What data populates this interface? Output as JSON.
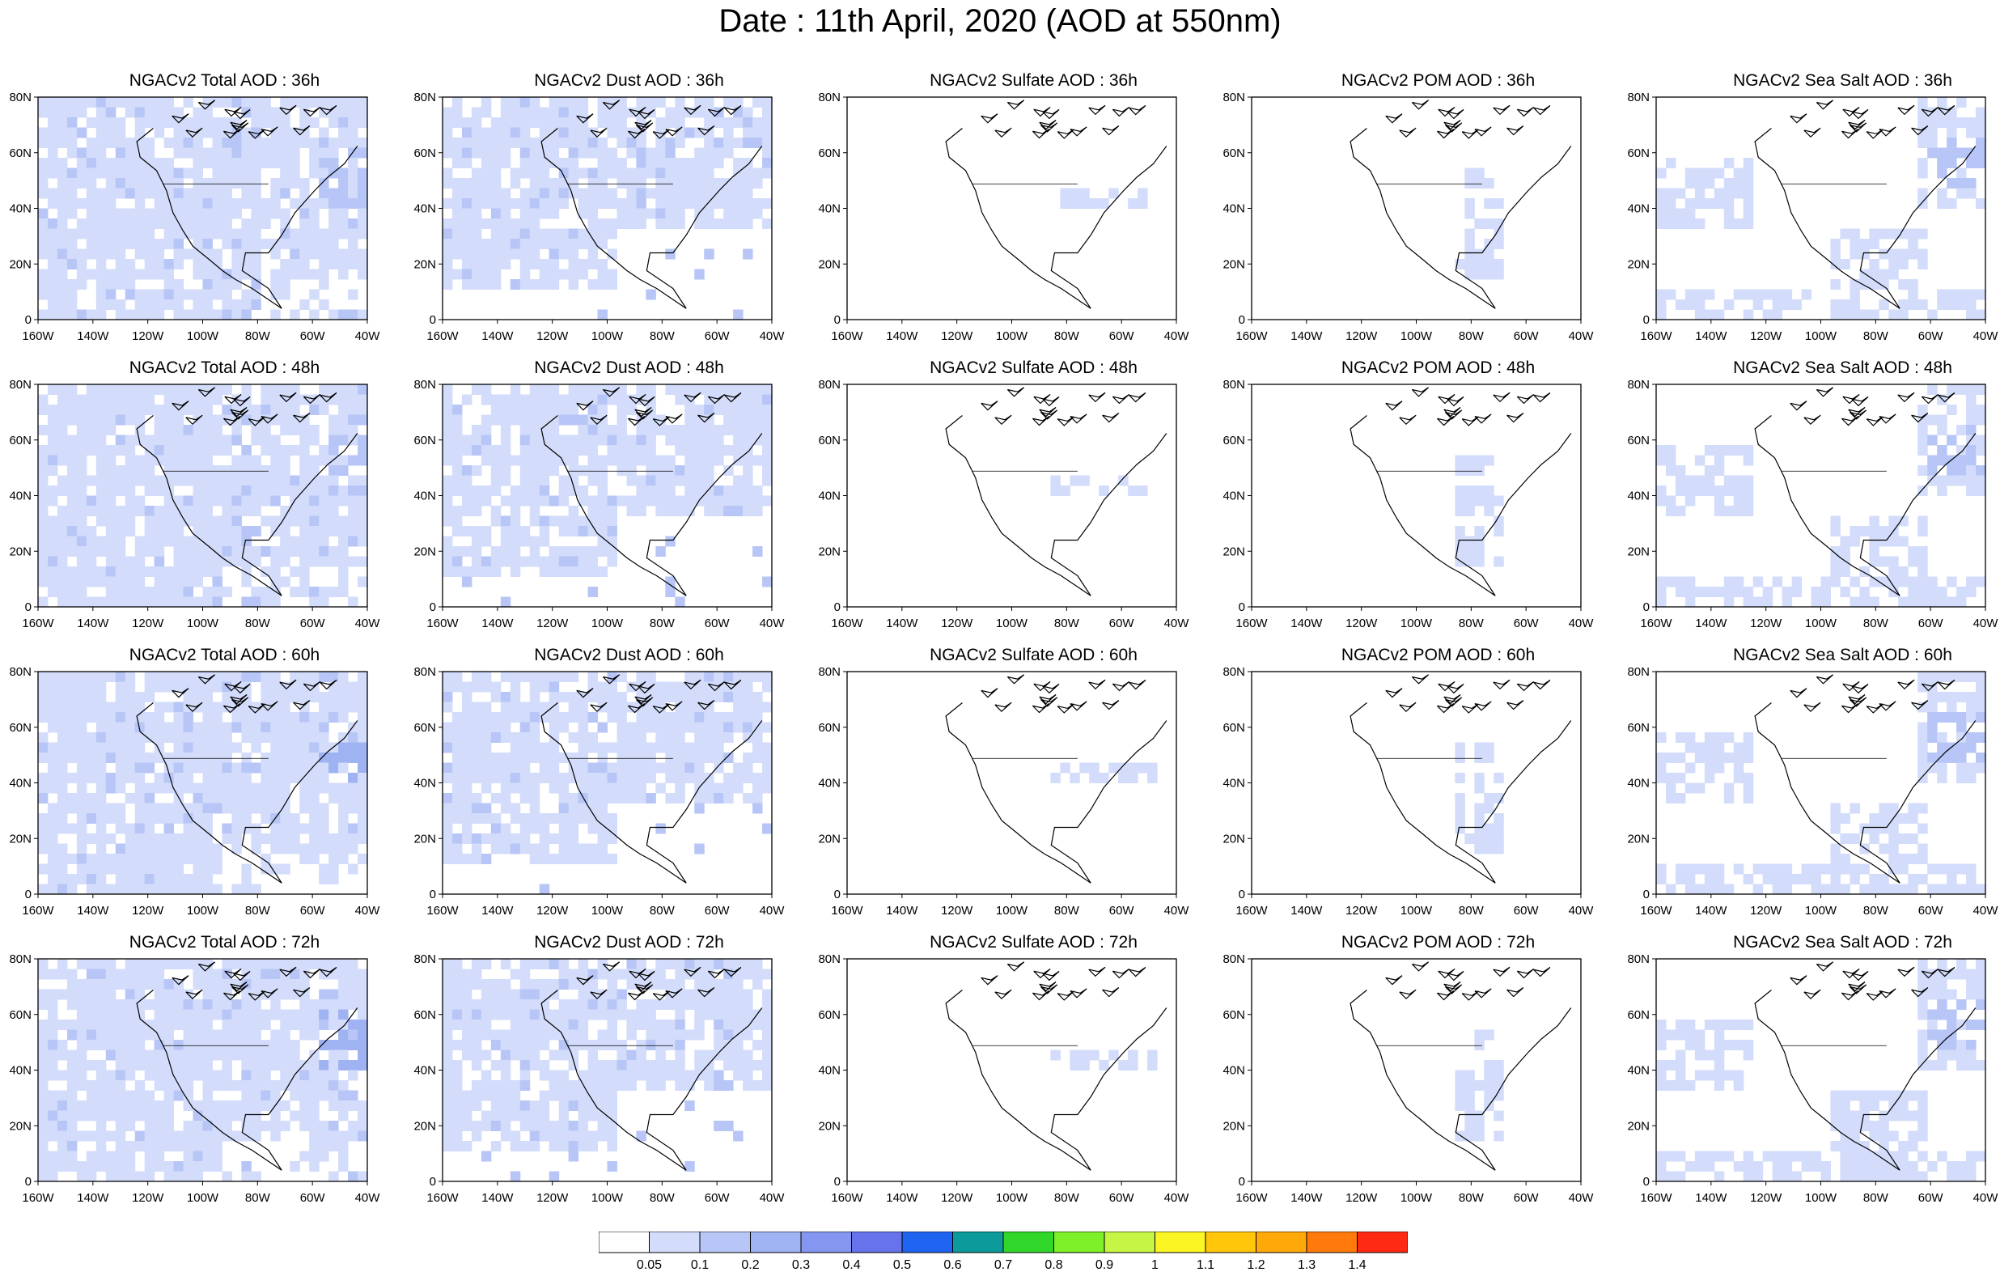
{
  "title": "Date : 11th April, 2020 (AOD at 550nm)",
  "panels": [
    [
      "NGACv2 Total AOD : 36h",
      "NGACv2 Dust AOD : 36h",
      "NGACv2 Sulfate AOD : 36h",
      "NGACv2 POM AOD : 36h",
      "NGACv2 Sea Salt AOD : 36h"
    ],
    [
      "NGACv2 Total AOD : 48h",
      "NGACv2 Dust AOD : 48h",
      "NGACv2 Sulfate AOD : 48h",
      "NGACv2 POM AOD : 48h",
      "NGACv2 Sea Salt AOD : 48h"
    ],
    [
      "NGACv2 Total AOD : 60h",
      "NGACv2 Dust AOD : 60h",
      "NGACv2 Sulfate AOD : 60h",
      "NGACv2 POM AOD : 60h",
      "NGACv2 Sea Salt AOD : 60h"
    ],
    [
      "NGACv2 Total AOD : 72h",
      "NGACv2 Dust AOD : 72h",
      "NGACv2 Sulfate AOD : 72h",
      "NGACv2 POM AOD : 72h",
      "NGACv2 Sea Salt  AOD : 72h"
    ]
  ],
  "lat_ticks": [
    "0",
    "20N",
    "40N",
    "60N",
    "80N"
  ],
  "lon_ticks": [
    "160W",
    "140W",
    "120W",
    "100W",
    "80W",
    "60W",
    "40W"
  ],
  "colorbar": {
    "labels": [
      "0.05",
      "0.1",
      "0.2",
      "0.3",
      "0.4",
      "0.5",
      "0.6",
      "0.7",
      "0.8",
      "0.9",
      "1",
      "1.1",
      "1.2",
      "1.3",
      "1.4"
    ],
    "colors": [
      "#ffffff",
      "#d3dcfa",
      "#b7c6f6",
      "#9fb3f3",
      "#8496ef",
      "#6673eb",
      "#1f64f0",
      "#0c9a9a",
      "#30d62a",
      "#7df02a",
      "#c6f545",
      "#fbf524",
      "#ffc60a",
      "#ffa80a",
      "#ff7a0a",
      "#ff2a14"
    ]
  }
}
